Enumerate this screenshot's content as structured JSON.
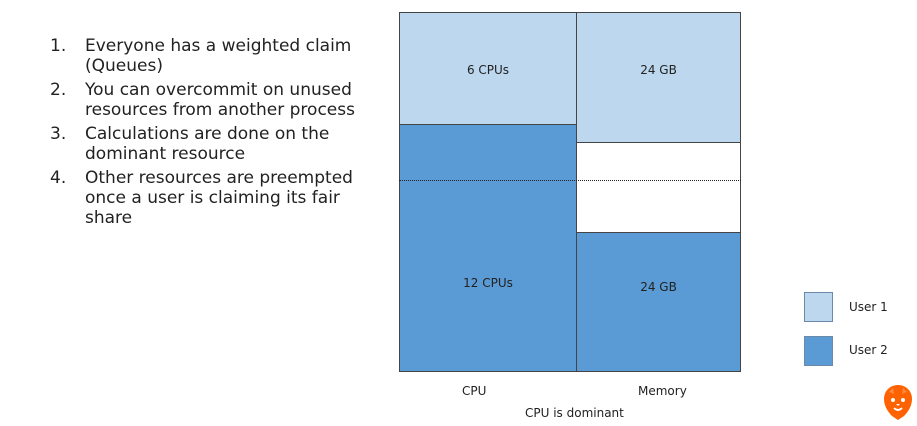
{
  "bullets": [
    {
      "num": "1.",
      "text": "Everyone has a weighted claim (Queues)"
    },
    {
      "num": "2.",
      "text": "You can overcommit on unused resources from another process"
    },
    {
      "num": "3.",
      "text": "Calculations are done on the dominant resource"
    },
    {
      "num": "4.",
      "text": "Other resources are preempted once a user is claiming its fair share"
    }
  ],
  "diagram": {
    "columns": [
      {
        "label": "CPU",
        "user1": "6 CPUs",
        "user2": "12 CPUs"
      },
      {
        "label": "Memory",
        "user1": "24 GB",
        "user2": "24 GB"
      }
    ],
    "caption": "CPU is dominant"
  },
  "legend": [
    {
      "label": "User 1",
      "color": "#bcd7ee"
    },
    {
      "label": "User 2",
      "color": "#5b9bd5"
    }
  ],
  "logo": {
    "icon": "lion-logo-icon",
    "color": "#ff6200"
  }
}
